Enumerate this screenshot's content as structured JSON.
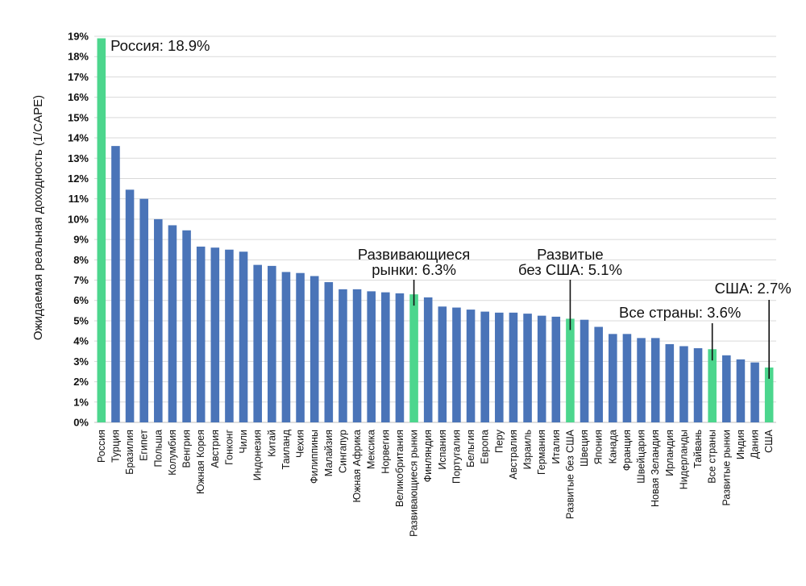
{
  "chart_data": {
    "type": "bar",
    "title": "",
    "xlabel": "",
    "ylabel": "Ожидаемая реальная доходность (1/CAPE)",
    "ylim": [
      0,
      19
    ],
    "grid": true,
    "y_tick_labels": [
      "0%",
      "1%",
      "2%",
      "3%",
      "4%",
      "5%",
      "6%",
      "7%",
      "8%",
      "9%",
      "10%",
      "11%",
      "12%",
      "13%",
      "14%",
      "15%",
      "16%",
      "17%",
      "18%",
      "19%"
    ],
    "categories": [
      "Россия",
      "Турция",
      "Бразилия",
      "Египет",
      "Польша",
      "Колумбия",
      "Венгрия",
      "Южная Корея",
      "Австрия",
      "Гонконг",
      "Чили",
      "Индонезия",
      "Китай",
      "Таиланд",
      "Чехия",
      "Филиппины",
      "Малайзия",
      "Сингапур",
      "Южная Африка",
      "Мексика",
      "Норвегия",
      "Великобритания",
      "Развивающиеся рынки",
      "Финляндия",
      "Испания",
      "Португалия",
      "Бельгия",
      "Европа",
      "Перу",
      "Австралия",
      "Израиль",
      "Германия",
      "Италия",
      "Развитые без США",
      "Швеция",
      "Япония",
      "Канада",
      "Франция",
      "Швейцария",
      "Новая Зеландия",
      "Ирландия",
      "Нидерланды",
      "Тайвань",
      "Все страны",
      "Развитые рынки",
      "Индия",
      "Дания",
      "США"
    ],
    "values": [
      18.9,
      13.6,
      11.45,
      11.0,
      10.0,
      9.7,
      9.45,
      8.65,
      8.6,
      8.5,
      8.4,
      7.75,
      7.7,
      7.4,
      7.35,
      7.2,
      6.9,
      6.55,
      6.55,
      6.45,
      6.4,
      6.35,
      6.3,
      6.15,
      5.7,
      5.65,
      5.55,
      5.45,
      5.4,
      5.4,
      5.35,
      5.25,
      5.2,
      5.1,
      5.05,
      4.7,
      4.35,
      4.35,
      4.15,
      4.15,
      3.85,
      3.75,
      3.65,
      3.6,
      3.3,
      3.1,
      2.95,
      2.7
    ],
    "highlighted": [
      "Россия",
      "Развивающиеся рынки",
      "Развитые без США",
      "Все страны",
      "США"
    ],
    "colors": {
      "bar": "#4a74b8",
      "highlight": "#4cd68d",
      "grid": "#d9d9d9",
      "text": "#111111"
    },
    "annotations": [
      {
        "target": "Россия",
        "lines": [
          "Россия: 18.9%"
        ]
      },
      {
        "target": "Развивающиеся рынки",
        "lines": [
          "Развивающиеся",
          "рынки: 6.3%"
        ]
      },
      {
        "target": "Развитые без США",
        "lines": [
          "Развитые",
          "без США: 5.1%"
        ]
      },
      {
        "target": "Все страны",
        "lines": [
          "Все страны: 3.6%"
        ]
      },
      {
        "target": "США",
        "lines": [
          "США: 2.7%"
        ]
      }
    ]
  }
}
